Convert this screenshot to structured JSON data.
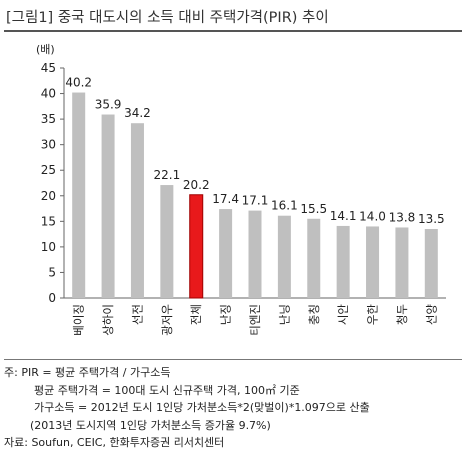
{
  "title": "[그림1] 중국 대도시의 소득 대비 주택가격(PIR) 추이",
  "chart_data": {
    "type": "bar",
    "ylabel": "(배)",
    "ylim": [
      0,
      45
    ],
    "yticks": [
      0,
      5,
      10,
      15,
      20,
      25,
      30,
      35,
      40,
      45
    ],
    "categories": [
      "베이징",
      "상하이",
      "선전",
      "광저우",
      "전체",
      "난징",
      "티엔진",
      "난닝",
      "충칭",
      "시안",
      "우한",
      "청두",
      "선양"
    ],
    "values": [
      40.2,
      35.9,
      34.2,
      22.1,
      20.2,
      17.4,
      17.1,
      16.1,
      15.5,
      14.1,
      14.0,
      13.8,
      13.5
    ],
    "value_labels": [
      "40.2",
      "35.9",
      "34.2",
      "22.1",
      "20.2",
      "17.4",
      "17.1",
      "16.1",
      "15.5",
      "14.1",
      "14.0",
      "13.8",
      "13.5"
    ],
    "highlight_index": 4,
    "colors": {
      "bar": "#bfbfbf",
      "highlight": "#e8191b",
      "highlight_edge": "#a00000"
    }
  },
  "notes": {
    "line1": "주: PIR = 평균 주택가격 / 가구소득",
    "line2": "평균 주택가격 = 100대 도시 신규주택 가격, 100㎡ 기준",
    "line3": "가구소득 = 2012년 도시 1인당 가처분소득*2(맞벌이)*1.097으로 산출",
    "line4": "(2013년 도시지역 1인당 가처분소득 증가율 9.7%)",
    "source": "자료: Soufun, CEIC, 한화투자증권 리서치센터"
  }
}
